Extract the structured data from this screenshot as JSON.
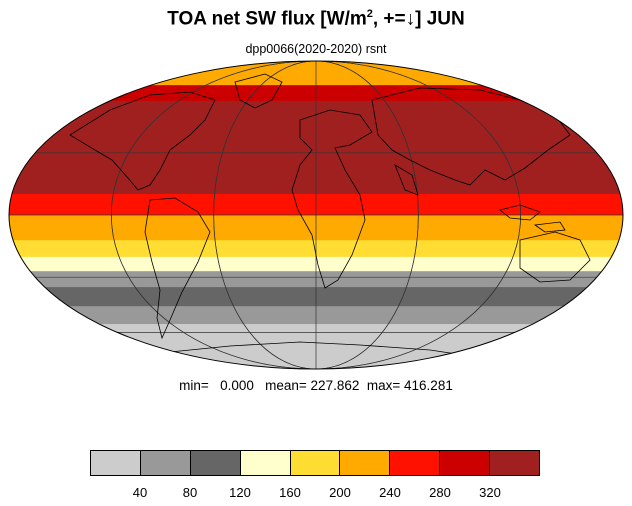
{
  "title": {
    "prefix": "TOA net SW flux [W/m",
    "sup": "2",
    "suffix": ", +=↓]  JUN"
  },
  "subtitle": "dpp0066(2020-2020)   rsnt",
  "stats": {
    "min_label": "min=",
    "min_value": "0.000",
    "mean_label": "mean=",
    "mean_value": "227.862",
    "max_label": "max=",
    "max_value": "416.281"
  },
  "colorbar": {
    "colors": [
      "#cccccc",
      "#999999",
      "#666666",
      "#ffffcc",
      "#ffdd33",
      "#ffaa00",
      "#ff1100",
      "#cc0000",
      "#a02020"
    ],
    "labels": [
      "40",
      "80",
      "120",
      "160",
      "200",
      "240",
      "280",
      "320"
    ]
  },
  "bands": [
    {
      "lat_from": 90,
      "lat_to": 68,
      "color": "#ffaa00"
    },
    {
      "lat_from": 68,
      "lat_to": 58,
      "color": "#cc0000"
    },
    {
      "lat_from": 58,
      "lat_to": 10,
      "color": "#a02020"
    },
    {
      "lat_from": 10,
      "lat_to": 0,
      "color": "#ff1100"
    },
    {
      "lat_from": 0,
      "lat_to": -12,
      "color": "#ffaa00"
    },
    {
      "lat_from": -12,
      "lat_to": -20,
      "color": "#ffdd33"
    },
    {
      "lat_from": -20,
      "lat_to": -27,
      "color": "#ffffcc"
    },
    {
      "lat_from": -27,
      "lat_to": -35,
      "color": "#999999"
    },
    {
      "lat_from": -35,
      "lat_to": -45,
      "color": "#666666"
    },
    {
      "lat_from": -45,
      "lat_to": -55,
      "color": "#999999"
    },
    {
      "lat_from": -55,
      "lat_to": -90,
      "color": "#cccccc"
    }
  ]
}
